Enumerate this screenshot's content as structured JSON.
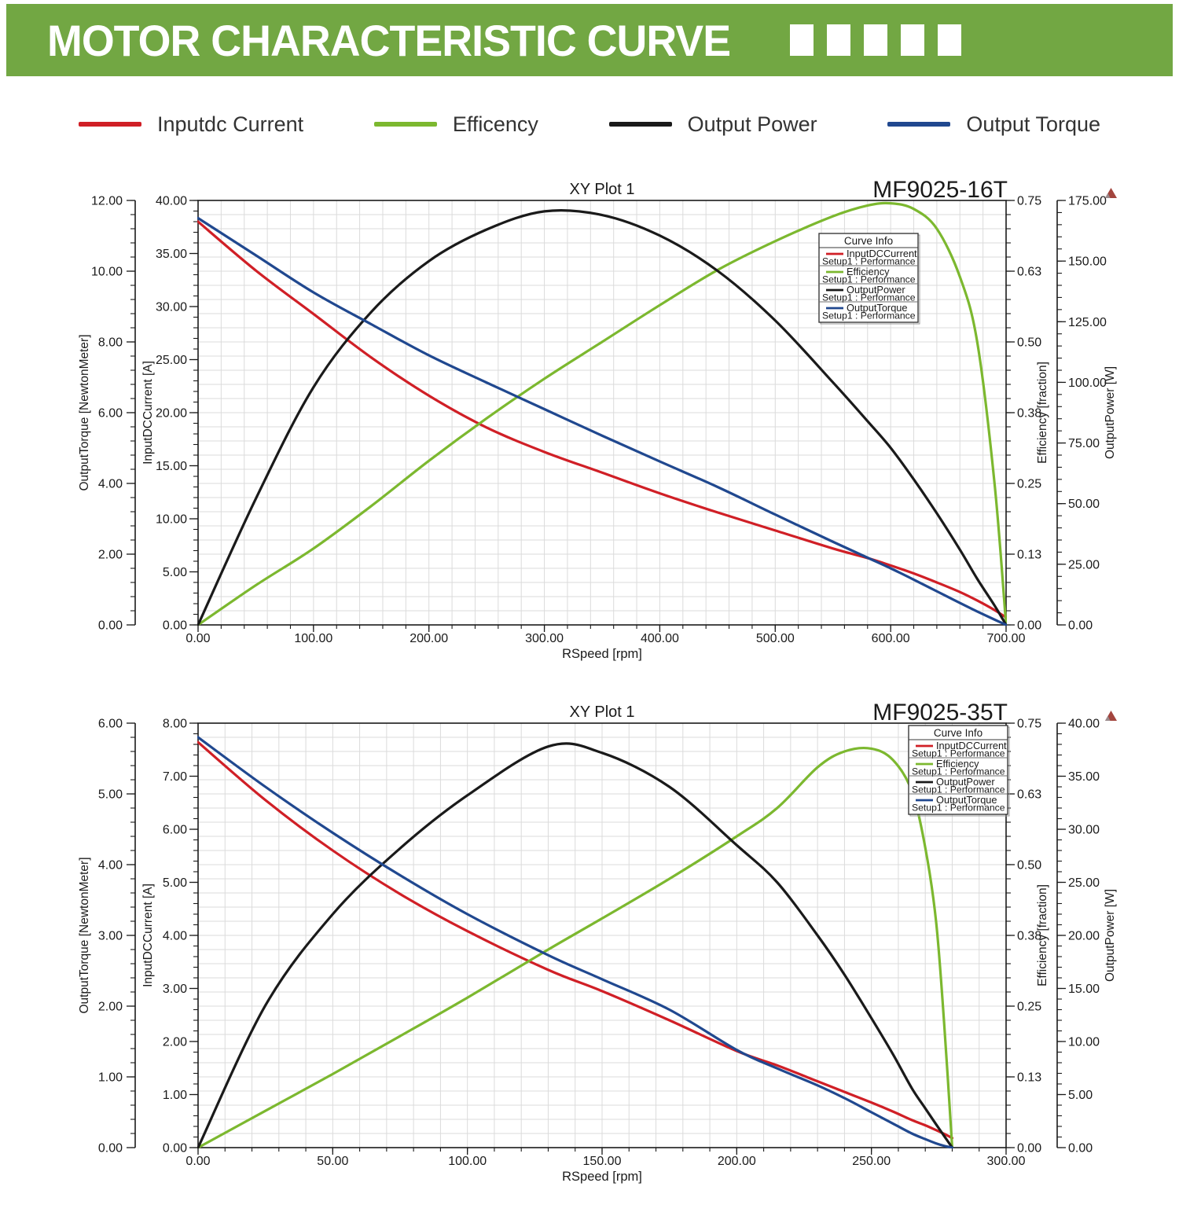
{
  "header": {
    "title": "MOTOR CHARACTERISTIC CURVE",
    "squares": 5
  },
  "legend": {
    "items": [
      {
        "label": "Inputdc Current",
        "color": "red"
      },
      {
        "label": "Efficency",
        "color": "green"
      },
      {
        "label": "Output Power",
        "color": "black"
      },
      {
        "label": "Output Torque",
        "color": "blue"
      }
    ]
  },
  "curve_info": {
    "title": "Curve Info",
    "entries": [
      {
        "name": "InputDCCurrent",
        "setup": "Setup1 : Performance",
        "color": "red"
      },
      {
        "name": "Efficiency",
        "setup": "Setup1 : Performance",
        "color": "green"
      },
      {
        "name": "OutputPower",
        "setup": "Setup1 : Performance",
        "color": "black"
      },
      {
        "name": "OutputTorque",
        "setup": "Setup1 : Performance",
        "color": "blue"
      }
    ]
  },
  "colors": {
    "red": "#D01F26",
    "green": "#7CB82F",
    "black": "#1A1A1A",
    "blue": "#20488F",
    "banner": "#72A743",
    "grid": "#DBDBDB",
    "axis": "#1A1A1A",
    "legend_text": "#333333",
    "triangle": "#A3453E",
    "triangle_shade": "#9A8A8C"
  },
  "chart_data": [
    {
      "type": "line",
      "title": "XY Plot 1",
      "model": "MF9025-16T",
      "grid": true,
      "legend_position": "inside-top-right",
      "x_axis": {
        "label": "RSpeed [rpm]",
        "min": 0,
        "max": 700,
        "major": 100,
        "minor": 20
      },
      "y_axes": {
        "torque": {
          "label": "OutputTorque [NewtonMeter]",
          "min": 0,
          "max": 12,
          "major": 2,
          "minor": 0.4
        },
        "current": {
          "label": "InputDCCurrent [A]",
          "min": 0,
          "max": 40,
          "major": 5,
          "minor": 1
        },
        "efficiency": {
          "label": "Efficiency [fraction]",
          "min": 0,
          "max": 0.75,
          "major": 0.125,
          "minor": 0.025
        },
        "power": {
          "label": "OutputPower [W]",
          "min": 0,
          "max": 175,
          "major": 25,
          "minor": 5
        }
      },
      "x": [
        0,
        50,
        100,
        150,
        200,
        250,
        300,
        350,
        400,
        450,
        500,
        550,
        580,
        600,
        620,
        640,
        660,
        675,
        690,
        700
      ],
      "series": [
        {
          "name": "InputDCCurrent",
          "axis": "current",
          "color": "red",
          "values": [
            38.0,
            33.4,
            29.3,
            25.2,
            21.6,
            18.6,
            16.3,
            14.35,
            12.4,
            10.6,
            8.9,
            7.2,
            6.3,
            5.6,
            4.85,
            4.0,
            3.1,
            2.3,
            1.4,
            0.7
          ]
        },
        {
          "name": "Efficiency",
          "axis": "efficiency",
          "color": "green",
          "values": [
            0,
            0.07,
            0.135,
            0.21,
            0.29,
            0.365,
            0.435,
            0.5,
            0.565,
            0.627,
            0.678,
            0.722,
            0.741,
            0.745,
            0.735,
            0.7,
            0.615,
            0.5,
            0.25,
            0.0
          ]
        },
        {
          "name": "OutputPower",
          "axis": "power",
          "color": "black",
          "values": [
            0,
            52,
            98,
            129,
            150,
            163,
            170.5,
            169,
            160.5,
            146,
            125.5,
            100,
            84,
            73,
            60,
            46,
            31,
            19,
            8,
            0
          ]
        },
        {
          "name": "OutputTorque",
          "axis": "torque",
          "color": "blue",
          "values": [
            11.5,
            10.45,
            9.4,
            8.5,
            7.62,
            6.85,
            6.1,
            5.35,
            4.62,
            3.9,
            3.12,
            2.35,
            1.9,
            1.6,
            1.28,
            0.95,
            0.62,
            0.38,
            0.15,
            0.0
          ]
        }
      ]
    },
    {
      "type": "line",
      "title": "XY Plot 1",
      "model": "MF9025-35T",
      "grid": true,
      "legend_position": "inside-top-right",
      "x_axis": {
        "label": "RSpeed [rpm]",
        "min": 0,
        "max": 300,
        "major": 50,
        "minor": 10
      },
      "y_axes": {
        "torque": {
          "label": "OutputTorque [NewtonMeter]",
          "min": 0,
          "max": 6,
          "major": 1,
          "minor": 0.2
        },
        "current": {
          "label": "InputDCCurrent [A]",
          "min": 0,
          "max": 8,
          "major": 1,
          "minor": 0.2
        },
        "efficiency": {
          "label": "Efficiency [fraction]",
          "min": 0,
          "max": 0.75,
          "major": 0.125,
          "minor": 0.025
        },
        "power": {
          "label": "OutputPower [W]",
          "min": 0,
          "max": 40,
          "major": 5,
          "minor": 1
        }
      },
      "x": [
        0,
        25,
        50,
        75,
        100,
        130,
        150,
        175,
        200,
        215,
        230,
        240,
        250,
        258,
        265,
        270,
        274,
        277,
        280
      ],
      "series": [
        {
          "name": "InputDCCurrent",
          "axis": "current",
          "color": "red",
          "values": [
            7.64,
            6.55,
            5.6,
            4.78,
            4.08,
            3.35,
            2.95,
            2.4,
            1.82,
            1.55,
            1.25,
            1.05,
            0.85,
            0.68,
            0.52,
            0.42,
            0.33,
            0.26,
            0.18
          ]
        },
        {
          "name": "Efficiency",
          "axis": "efficiency",
          "color": "green",
          "values": [
            0,
            0.065,
            0.13,
            0.197,
            0.265,
            0.35,
            0.405,
            0.475,
            0.55,
            0.6,
            0.672,
            0.7,
            0.705,
            0.685,
            0.63,
            0.53,
            0.4,
            0.22,
            0.0
          ]
        },
        {
          "name": "OutputPower",
          "axis": "power",
          "color": "black",
          "values": [
            0,
            13.4,
            22.0,
            28.2,
            33.2,
            37.8,
            37.2,
            34.0,
            28.5,
            25.0,
            20.0,
            16.3,
            12.2,
            8.8,
            5.6,
            3.7,
            2.2,
            1.1,
            0.0
          ]
        },
        {
          "name": "OutputTorque",
          "axis": "torque",
          "color": "blue",
          "values": [
            5.8,
            5.1,
            4.45,
            3.85,
            3.3,
            2.72,
            2.38,
            1.95,
            1.38,
            1.12,
            0.88,
            0.7,
            0.5,
            0.34,
            0.2,
            0.12,
            0.06,
            0.025,
            0.0
          ]
        }
      ]
    }
  ]
}
